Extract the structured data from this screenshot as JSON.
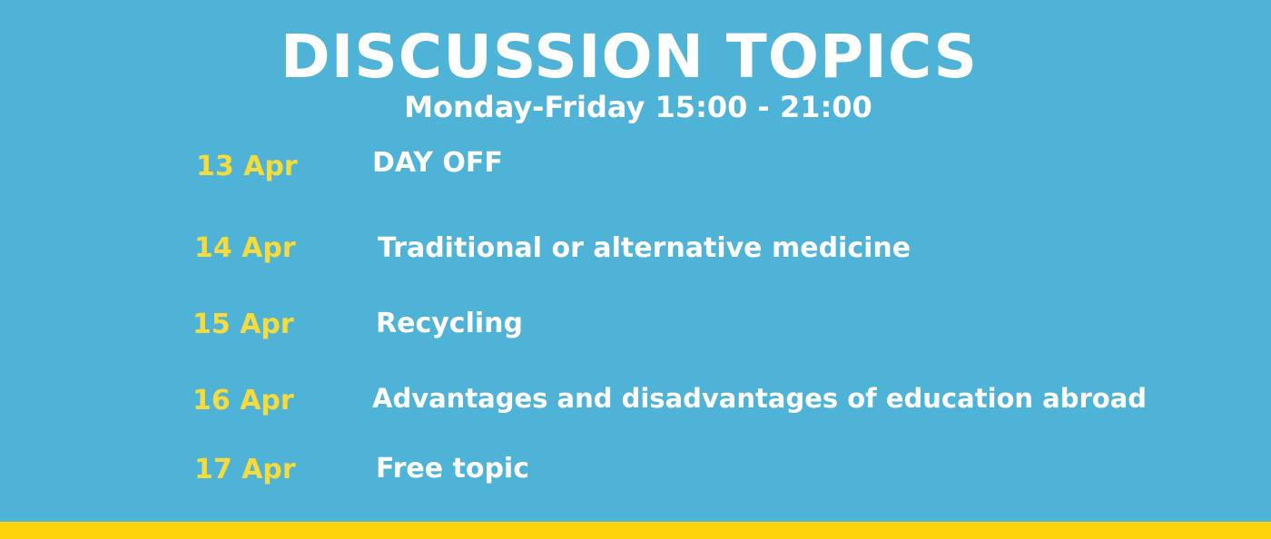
{
  "header": {
    "title": "DISCUSSION TOPICS",
    "subtitle": "Monday-Friday 15:00 - 21:00"
  },
  "schedule": [
    {
      "date": "13 Apr",
      "topic": "DAY OFF"
    },
    {
      "date": "14 Apr",
      "topic": "Traditional or  alternative medicine"
    },
    {
      "date": "15 Apr",
      "topic": "Recycling"
    },
    {
      "date": "16 Apr",
      "topic": "Advantages and disadvantages of education abroad"
    },
    {
      "date": "17 Apr",
      "topic": "Free topic"
    }
  ],
  "colors": {
    "background": "#4fb3d8",
    "date_text": "#f5dc3c",
    "topic_text": "#ffffff",
    "footer_bar": "#fdd40a"
  }
}
